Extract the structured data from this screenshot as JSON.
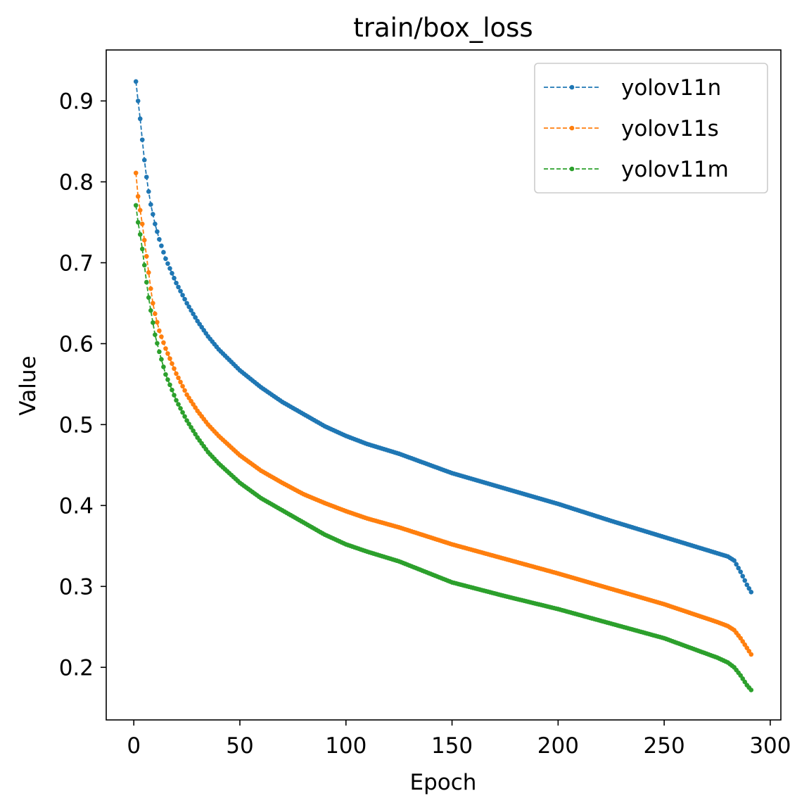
{
  "chart_data": {
    "type": "line",
    "title": "train/box_loss",
    "xlabel": "Epoch",
    "ylabel": "Value",
    "xlim": [
      -13,
      305
    ],
    "ylim": [
      0.135,
      0.963
    ],
    "xticks": [
      0,
      50,
      100,
      150,
      200,
      250,
      300
    ],
    "yticks": [
      0.2,
      0.3,
      0.4,
      0.5,
      0.6,
      0.7,
      0.8,
      0.9
    ],
    "grid": false,
    "legend_position": "top-right",
    "line_style": "dashed",
    "marker": "dot",
    "epochs": {
      "start": 1,
      "end": 291
    },
    "series": [
      {
        "name": "yolov11n",
        "color": "#1f77b4",
        "anchors": [
          [
            1,
            0.924
          ],
          [
            2,
            0.9
          ],
          [
            3,
            0.878
          ],
          [
            4,
            0.852
          ],
          [
            5,
            0.827
          ],
          [
            6,
            0.806
          ],
          [
            7,
            0.788
          ],
          [
            8,
            0.772
          ],
          [
            9,
            0.76
          ],
          [
            10,
            0.748
          ],
          [
            12,
            0.729
          ],
          [
            15,
            0.705
          ],
          [
            20,
            0.675
          ],
          [
            25,
            0.65
          ],
          [
            30,
            0.628
          ],
          [
            35,
            0.609
          ],
          [
            40,
            0.593
          ],
          [
            50,
            0.567
          ],
          [
            60,
            0.546
          ],
          [
            70,
            0.528
          ],
          [
            80,
            0.513
          ],
          [
            90,
            0.498
          ],
          [
            100,
            0.486
          ],
          [
            110,
            0.476
          ],
          [
            125,
            0.464
          ],
          [
            150,
            0.44
          ],
          [
            175,
            0.421
          ],
          [
            200,
            0.402
          ],
          [
            225,
            0.381
          ],
          [
            250,
            0.361
          ],
          [
            275,
            0.341
          ],
          [
            280,
            0.337
          ],
          [
            283,
            0.332
          ],
          [
            286,
            0.318
          ],
          [
            289,
            0.302
          ],
          [
            291,
            0.293
          ]
        ]
      },
      {
        "name": "yolov11s",
        "color": "#ff7f0e",
        "anchors": [
          [
            1,
            0.811
          ],
          [
            2,
            0.782
          ],
          [
            3,
            0.765
          ],
          [
            4,
            0.748
          ],
          [
            5,
            0.728
          ],
          [
            6,
            0.708
          ],
          [
            7,
            0.688
          ],
          [
            8,
            0.668
          ],
          [
            9,
            0.65
          ],
          [
            10,
            0.637
          ],
          [
            12,
            0.616
          ],
          [
            15,
            0.594
          ],
          [
            20,
            0.563
          ],
          [
            25,
            0.537
          ],
          [
            30,
            0.517
          ],
          [
            35,
            0.5
          ],
          [
            40,
            0.486
          ],
          [
            50,
            0.462
          ],
          [
            60,
            0.443
          ],
          [
            70,
            0.428
          ],
          [
            80,
            0.414
          ],
          [
            90,
            0.403
          ],
          [
            100,
            0.393
          ],
          [
            110,
            0.384
          ],
          [
            125,
            0.373
          ],
          [
            150,
            0.352
          ],
          [
            175,
            0.334
          ],
          [
            200,
            0.316
          ],
          [
            225,
            0.297
          ],
          [
            250,
            0.278
          ],
          [
            275,
            0.256
          ],
          [
            280,
            0.251
          ],
          [
            283,
            0.246
          ],
          [
            286,
            0.236
          ],
          [
            289,
            0.224
          ],
          [
            291,
            0.216
          ]
        ]
      },
      {
        "name": "yolov11m",
        "color": "#2ca02c",
        "anchors": [
          [
            1,
            0.771
          ],
          [
            2,
            0.75
          ],
          [
            3,
            0.735
          ],
          [
            4,
            0.717
          ],
          [
            5,
            0.697
          ],
          [
            6,
            0.676
          ],
          [
            7,
            0.657
          ],
          [
            8,
            0.641
          ],
          [
            9,
            0.626
          ],
          [
            10,
            0.611
          ],
          [
            12,
            0.59
          ],
          [
            15,
            0.562
          ],
          [
            20,
            0.53
          ],
          [
            25,
            0.505
          ],
          [
            30,
            0.484
          ],
          [
            35,
            0.466
          ],
          [
            40,
            0.452
          ],
          [
            50,
            0.428
          ],
          [
            60,
            0.409
          ],
          [
            70,
            0.394
          ],
          [
            80,
            0.379
          ],
          [
            90,
            0.364
          ],
          [
            100,
            0.352
          ],
          [
            110,
            0.343
          ],
          [
            125,
            0.331
          ],
          [
            150,
            0.305
          ],
          [
            175,
            0.288
          ],
          [
            200,
            0.272
          ],
          [
            225,
            0.254
          ],
          [
            250,
            0.236
          ],
          [
            275,
            0.212
          ],
          [
            280,
            0.206
          ],
          [
            283,
            0.2
          ],
          [
            286,
            0.19
          ],
          [
            289,
            0.178
          ],
          [
            291,
            0.172
          ]
        ]
      }
    ]
  }
}
